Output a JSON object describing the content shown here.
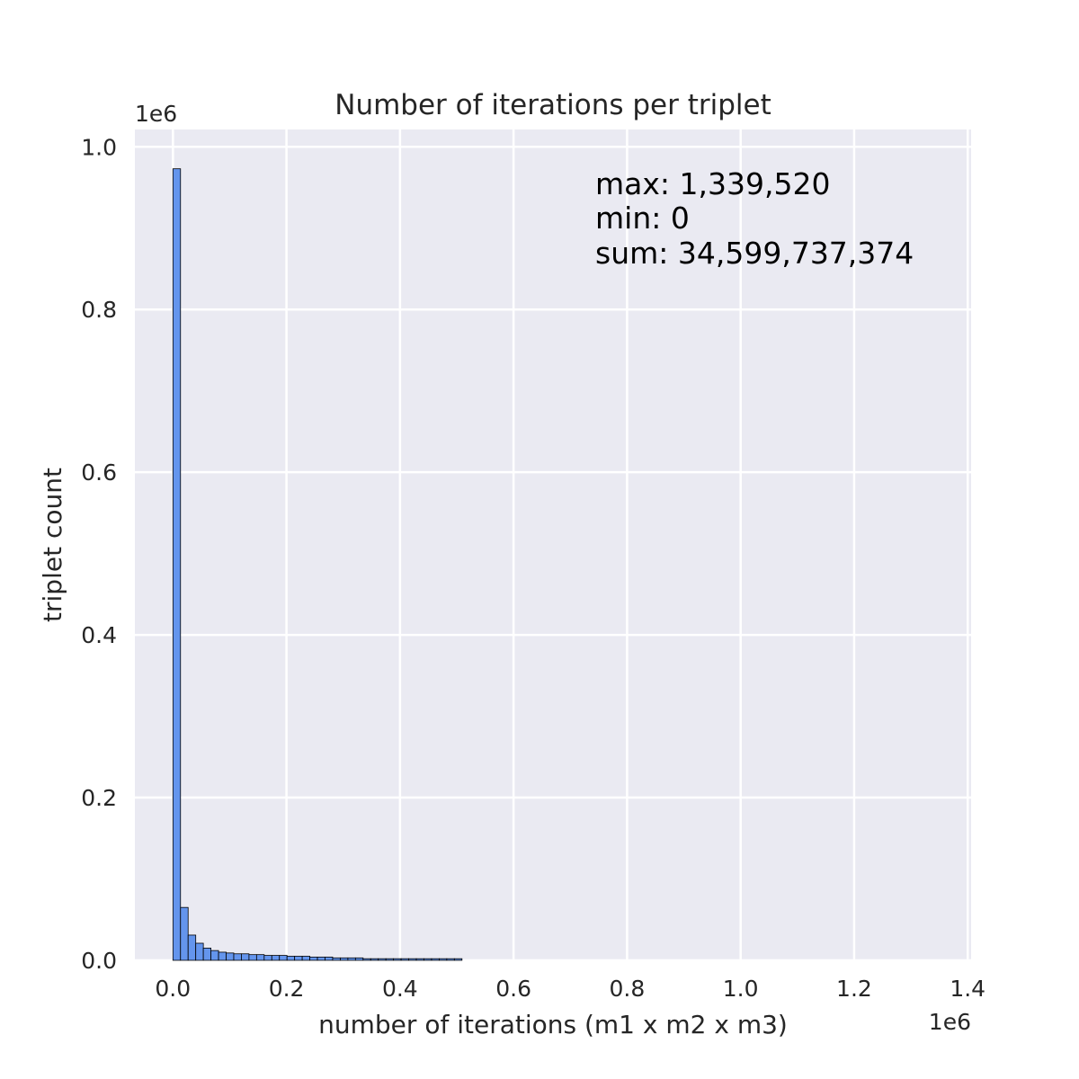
{
  "chart_data": {
    "type": "histogram",
    "title": "Number of iterations per triplet",
    "xlabel": "number of iterations (m1 x m2 x m3)",
    "ylabel": "triplet count",
    "x_offset_text": "1e6",
    "y_offset_text": "1e6",
    "xlim": [
      -0.067,
      1.406
    ],
    "ylim": [
      0,
      1.0213
    ],
    "xticks": [
      0.0,
      0.2,
      0.4,
      0.6,
      0.8,
      1.0,
      1.2,
      1.4
    ],
    "xtick_labels": [
      "0.0",
      "0.2",
      "0.4",
      "0.6",
      "0.8",
      "1.0",
      "1.2",
      "1.4"
    ],
    "yticks": [
      0.0,
      0.2,
      0.4,
      0.6,
      0.8,
      1.0
    ],
    "ytick_labels": [
      "0.0",
      "0.2",
      "0.4",
      "0.6",
      "0.8",
      "1.0"
    ],
    "grid": true,
    "bin_width": 0.0134,
    "bin_start": 0.0,
    "counts": [
      0.973,
      0.065,
      0.031,
      0.021,
      0.015,
      0.012,
      0.01,
      0.009,
      0.008,
      0.008,
      0.007,
      0.007,
      0.006,
      0.006,
      0.006,
      0.005,
      0.005,
      0.005,
      0.004,
      0.004,
      0.004,
      0.003,
      0.003,
      0.003,
      0.003,
      0.002,
      0.002,
      0.002,
      0.002,
      0.002,
      0.002,
      0.002,
      0.002,
      0.002,
      0.002,
      0.002,
      0.002,
      0.002
    ],
    "colors": {
      "fill": "#6495ed",
      "edge": "#000000",
      "background": "#eaeaf2",
      "grid": "#ffffff"
    },
    "annotation": {
      "max": "max: 1,339,520",
      "min": "min: 0",
      "sum": "sum: 34,599,737,374"
    }
  }
}
